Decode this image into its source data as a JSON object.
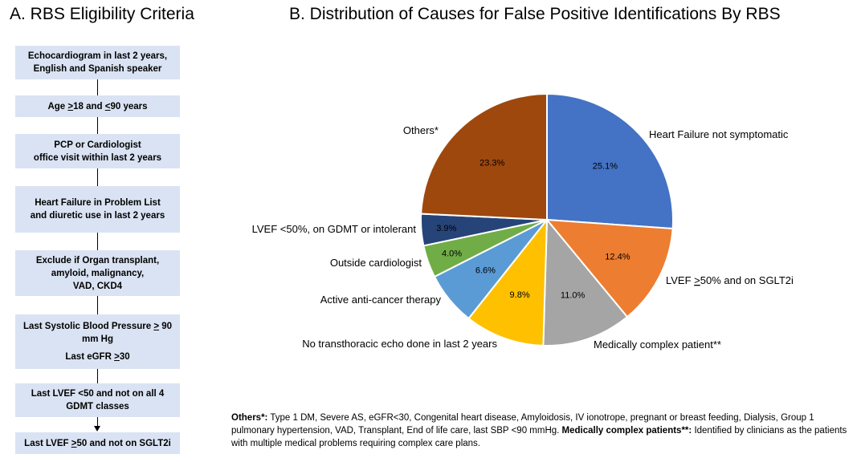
{
  "panel_a": {
    "title": "A. RBS Eligibility Criteria",
    "boxes": [
      {
        "lines": [
          "Echocardiogram in last 2 years,",
          "English and Spanish speaker"
        ]
      },
      {
        "prefix": "Age ",
        "sym1": ">",
        "mid": "18 and ",
        "sym2": "<",
        "suffix": "90 years"
      },
      {
        "lines": [
          "PCP or Cardiologist",
          "office visit within last 2 years"
        ]
      },
      {
        "lines": [
          "Heart Failure in Problem List",
          "and diuretic use in last 2 years"
        ]
      },
      {
        "lines": [
          "Exclude if Organ transplant,",
          "amyloid, malignancy,",
          "VAD, CKD4"
        ]
      },
      {
        "line1_prefix": "Last Systolic Blood Pressure ",
        "line1_sym": ">",
        "line1_suffix": " 90",
        "line2": "mm Hg",
        "line3_prefix": "Last  eGFR ",
        "line3_sym": ">",
        "line3_suffix": "30"
      },
      {
        "lines": [
          "Last  LVEF <50 and not on all 4",
          "GDMT classes"
        ]
      },
      {
        "prefix": "Last  LVEF ",
        "sym": ">",
        "suffix": "50 and not on SGLT2i"
      }
    ]
  },
  "chart_data": {
    "type": "pie",
    "title": "B. Distribution of Causes for False Positive Identifications By RBS",
    "start_angle_deg": 0,
    "direction": "clockwise",
    "slices": [
      {
        "label": "Heart Failure not symptomatic",
        "value": 25.1,
        "pct_label": "25.1%",
        "color": "#4472c4"
      },
      {
        "label_prefix": "LVEF ",
        "label_sym": ">",
        "label_suffix": "50% and on SGLT2i",
        "label": "LVEF >50% and on SGLT2i",
        "value": 12.4,
        "pct_label": "12.4%",
        "color": "#ed7d31"
      },
      {
        "label": "Medically complex patient**",
        "value": 11.0,
        "pct_label": "11.0%",
        "color": "#a5a5a5"
      },
      {
        "label": "No transthoracic echo done in last 2 years",
        "value": 9.8,
        "pct_label": "9.8%",
        "color": "#ffc000"
      },
      {
        "label": "Active anti-cancer therapy",
        "value": 6.6,
        "pct_label": "6.6%",
        "color": "#5b9bd5"
      },
      {
        "label": "Outside cardiologist",
        "value": 4.0,
        "pct_label": "4.0%",
        "color": "#70ad47"
      },
      {
        "label": "LVEF <50%, on GDMT or intolerant",
        "value": 3.9,
        "pct_label": "3.9%",
        "color": "#264478"
      },
      {
        "label": "Others*",
        "value": 23.3,
        "pct_label": "23.3%",
        "color": "#9e480e"
      }
    ]
  },
  "footnote": {
    "others_label": "Others*:",
    "others_text": " Type 1 DM, Severe AS, eGFR<30, Congenital heart disease, Amyloidosis, IV ionotrope, pregnant or breast feeding, Dialysis, Group 1 pulmonary hypertension, VAD, Transplant, End of life care, last SBP <90 mmHg. ",
    "complex_label": "Medically complex patients**:",
    "complex_text": " Identified by clinicians as the patients with multiple medical problems requiring complex care plans."
  }
}
